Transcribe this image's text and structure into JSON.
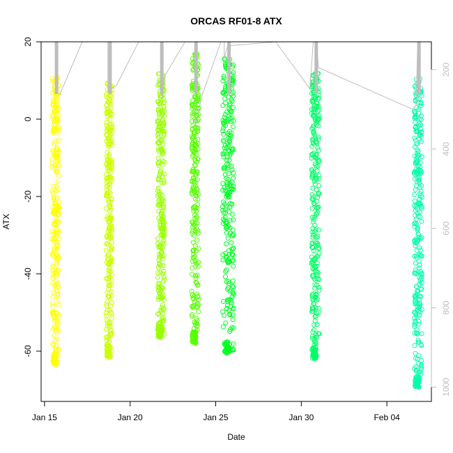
{
  "chart_data": {
    "type": "scatter",
    "title": "ORCAS RF01-8 ATX",
    "xlabel": "Date",
    "ylabel": "ATX",
    "x_tick_labels": [
      "Jan 15",
      "Jan 20",
      "Jan 25",
      "Jan 30",
      "Feb 04"
    ],
    "x_tick_days": [
      0,
      5,
      10,
      15,
      20
    ],
    "y_ticks": [
      -60,
      -40,
      -20,
      0,
      20
    ],
    "y_range": [
      -73,
      20
    ],
    "x_range_days": [
      -0.2,
      22.6
    ],
    "right_axis": {
      "ticks": [
        200,
        400,
        600,
        800,
        1000
      ],
      "range_top_to_bottom": [
        130,
        1036
      ],
      "color": "#bdbdbd"
    },
    "series": [
      {
        "day_start": 0.45,
        "day_end": 0.85,
        "ymin": -63.5,
        "ymax": 11,
        "color": "#ffff00"
      },
      {
        "day_start": 3.6,
        "day_end": 3.95,
        "ymin": -61.5,
        "ymax": 11,
        "color": "#ccff00"
      },
      {
        "day_start": 6.6,
        "day_end": 7.0,
        "ymin": -56.5,
        "ymax": 12,
        "color": "#99ff00"
      },
      {
        "day_start": 8.6,
        "day_end": 9.0,
        "ymin": -58,
        "ymax": 17,
        "color": "#55ff00"
      },
      {
        "day_start": 10.4,
        "day_end": 11.05,
        "ymin": -60.5,
        "ymax": 16,
        "color": "#00ff22"
      },
      {
        "day_start": 15.6,
        "day_end": 16.05,
        "ymin": -62,
        "ymax": 12,
        "color": "#00ff66"
      },
      {
        "day_start": 21.6,
        "day_end": 22.05,
        "ymin": -69.5,
        "ymax": 10.5,
        "color": "#00ffaa"
      }
    ],
    "pressure_trace": [
      [
        0.7,
        130
      ],
      [
        0.7,
        260
      ],
      [
        0.9,
        262
      ],
      [
        2.2,
        130
      ],
      [
        3.7,
        130
      ],
      [
        3.7,
        255
      ],
      [
        4.2,
        240
      ],
      [
        5.5,
        130
      ],
      [
        6.9,
        130
      ],
      [
        6.9,
        275
      ],
      [
        7.0,
        218
      ],
      [
        8.2,
        130
      ],
      [
        8.8,
        130
      ],
      [
        8.8,
        345
      ],
      [
        9.2,
        265
      ],
      [
        10.3,
        130
      ],
      [
        10.5,
        130
      ],
      [
        10.5,
        170
      ],
      [
        10.7,
        140
      ],
      [
        13.5,
        130
      ],
      [
        15.5,
        248
      ],
      [
        15.7,
        130
      ],
      [
        15.9,
        130
      ],
      [
        16.0,
        195
      ],
      [
        21.5,
        300
      ],
      [
        21.7,
        290
      ],
      [
        21.8,
        130
      ]
    ],
    "grid": false,
    "legend": "none"
  }
}
